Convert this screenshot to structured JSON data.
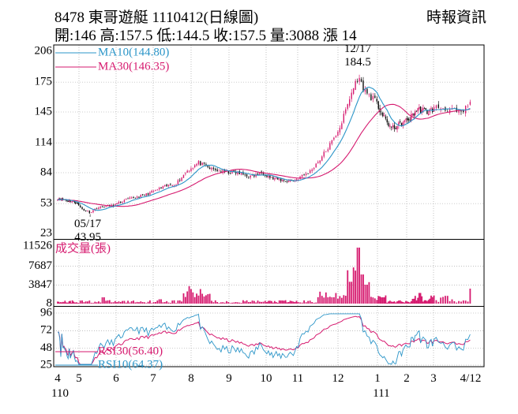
{
  "header": {
    "title": "8478 東哥遊艇 1110412(日線圖)",
    "source": "時報資訊",
    "ohlc": "開:146 高:157.5 低:144.5 收:157.5 量:3088 漲 14"
  },
  "colors": {
    "up": "#d61a6f",
    "down": "#111111",
    "ma10": "#2b95c8",
    "ma30": "#d61a6f",
    "volume": "#d61a6f",
    "rsi10": "#2b95c8",
    "rsi30": "#d61a6f",
    "grid": "#9a9a9a"
  },
  "chart_data": [
    {
      "type": "candlestick",
      "panel": "price",
      "y_ticks": [
        "206",
        "175",
        "145",
        "114",
        "84",
        "53",
        "23"
      ],
      "ylim": [
        23,
        206
      ],
      "grid": true,
      "legend": [
        {
          "label": "MA10(144.80)",
          "color": "#2b95c8"
        },
        {
          "label": "MA30(146.35)",
          "color": "#d61a6f"
        }
      ],
      "annotations": [
        {
          "date": "12/17",
          "value": "184.5",
          "kind": "high"
        },
        {
          "date": "05/17",
          "value": "43.95",
          "kind": "low"
        }
      ],
      "anchors": [
        {
          "month": 4,
          "price": 58
        },
        {
          "month": 4.5,
          "price": 56
        },
        {
          "month": 4.9,
          "price": 54
        },
        {
          "month": 5.1,
          "price": 47
        },
        {
          "month": 5.3,
          "price": 44
        },
        {
          "month": 5.5,
          "price": 49
        },
        {
          "month": 5.9,
          "price": 51
        },
        {
          "month": 6.3,
          "price": 57
        },
        {
          "month": 6.8,
          "price": 62
        },
        {
          "month": 7.3,
          "price": 70
        },
        {
          "month": 7.6,
          "price": 73
        },
        {
          "month": 7.9,
          "price": 86
        },
        {
          "month": 8.2,
          "price": 94
        },
        {
          "month": 8.5,
          "price": 88
        },
        {
          "month": 8.8,
          "price": 85
        },
        {
          "month": 9.2,
          "price": 84
        },
        {
          "month": 9.6,
          "price": 80
        },
        {
          "month": 9.9,
          "price": 84
        },
        {
          "month": 10.2,
          "price": 78
        },
        {
          "month": 10.6,
          "price": 76
        },
        {
          "month": 10.9,
          "price": 76
        },
        {
          "month": 11.3,
          "price": 85
        },
        {
          "month": 11.6,
          "price": 100
        },
        {
          "month": 11.9,
          "price": 118
        },
        {
          "month": 12.1,
          "price": 135
        },
        {
          "month": 12.35,
          "price": 165
        },
        {
          "month": 12.5,
          "price": 180
        },
        {
          "month": 12.7,
          "price": 165
        },
        {
          "month": 12.9,
          "price": 158
        },
        {
          "month": 13.2,
          "price": 140
        },
        {
          "month": 13.5,
          "price": 128
        },
        {
          "month": 13.8,
          "price": 133
        },
        {
          "month": 14.1,
          "price": 138
        },
        {
          "month": 14.4,
          "price": 148
        },
        {
          "month": 14.8,
          "price": 145
        },
        {
          "month": 15.1,
          "price": 150
        },
        {
          "month": 15.4,
          "price": 147
        },
        {
          "month": 15.6,
          "price": 143
        },
        {
          "month": 15.8,
          "price": 154
        }
      ]
    },
    {
      "type": "bar",
      "panel": "volume",
      "title": "成交量(張)",
      "y_ticks": [
        "11526",
        "7687",
        "3847",
        "8"
      ],
      "ylim": [
        8,
        11526
      ]
    },
    {
      "type": "line",
      "panel": "rsi",
      "y_ticks": [
        "96",
        "72",
        "48",
        "25"
      ],
      "ylim": [
        25,
        96
      ],
      "legend": [
        {
          "label": "RSI30(56.40)",
          "color": "#d61a6f"
        },
        {
          "label": "RSI10(64.37)",
          "color": "#2b95c8"
        }
      ]
    }
  ],
  "x_axis": {
    "ticks": [
      "4",
      "5",
      "6",
      "7",
      "8",
      "9",
      "10",
      "11",
      "12",
      "1",
      "2",
      "3",
      "4/12"
    ],
    "years": [
      {
        "label": "110",
        "at_tick": "4"
      },
      {
        "label": "111",
        "at_tick": "1"
      }
    ]
  }
}
